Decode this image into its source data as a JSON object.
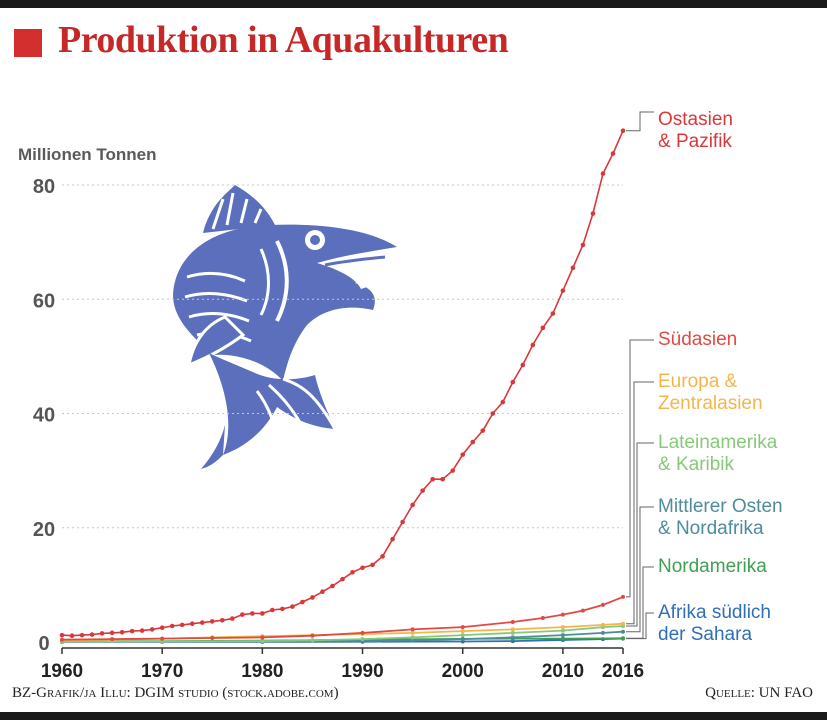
{
  "header": {
    "title": "Produktion in Aquakulturen"
  },
  "footer": {
    "credit": "BZ-Grafik/ja   Illu: DGIM studio (stock.adobe.com)",
    "source": "Quelle: UN FAO"
  },
  "colors": {
    "title": "#c62828",
    "ostasien": "#d9383a",
    "suedasien": "#e04a42",
    "europa": "#f5b54a",
    "lateinamerika": "#86c979",
    "mittlerer_osten": "#4e8c9a",
    "nordamerika": "#3ea052",
    "afrika": "#2f6fb5",
    "fish": "#5b6fbd"
  },
  "illustration": {
    "icon": "fish-icon"
  },
  "chart_data": {
    "type": "line",
    "ylabel": "Millionen Tonnen",
    "xlabel": "",
    "ylim": [
      0,
      90
    ],
    "xlim": [
      1960,
      2016
    ],
    "yticks": [
      0,
      20,
      40,
      60,
      80
    ],
    "xticks": [
      {
        "value": 1960,
        "label": "1960"
      },
      {
        "value": 1970,
        "label": "1970"
      },
      {
        "value": 1980,
        "label": "1980"
      },
      {
        "value": 1990,
        "label": "1990"
      },
      {
        "value": 2000,
        "label": "2000"
      },
      {
        "value": 2010,
        "label": "2010"
      },
      {
        "value": 2016,
        "label": "2016"
      }
    ],
    "grid": true,
    "series": [
      {
        "key": "ostasien",
        "name": "Ostasien & Pazifik",
        "label_lines": [
          "Ostasien",
          "& Pazifik"
        ],
        "x": [
          1960,
          1961,
          1962,
          1963,
          1964,
          1965,
          1966,
          1967,
          1968,
          1969,
          1970,
          1971,
          1972,
          1973,
          1974,
          1975,
          1976,
          1977,
          1978,
          1979,
          1980,
          1981,
          1982,
          1983,
          1984,
          1985,
          1986,
          1987,
          1988,
          1989,
          1990,
          1991,
          1992,
          1993,
          1994,
          1995,
          1996,
          1997,
          1998,
          1999,
          2000,
          2001,
          2002,
          2003,
          2004,
          2005,
          2006,
          2007,
          2008,
          2009,
          2010,
          2011,
          2012,
          2013,
          2014,
          2015,
          2016
        ],
        "y": [
          1.2,
          1.1,
          1.2,
          1.3,
          1.5,
          1.6,
          1.7,
          1.9,
          2.0,
          2.2,
          2.5,
          2.8,
          3.0,
          3.2,
          3.4,
          3.6,
          3.8,
          4.1,
          4.8,
          5.0,
          5.0,
          5.6,
          5.8,
          6.2,
          7.0,
          7.8,
          8.8,
          9.8,
          11.0,
          12.2,
          13.0,
          13.5,
          15.0,
          18.0,
          21.0,
          24.0,
          26.5,
          28.5,
          28.5,
          30.0,
          32.8,
          35.0,
          37.0,
          40.0,
          42.0,
          45.5,
          48.5,
          52.0,
          55.0,
          57.5,
          61.5,
          65.5,
          69.5,
          75.0,
          82.0,
          85.5,
          89.5
        ]
      },
      {
        "key": "suedasien",
        "name": "Südasien",
        "label_lines": [
          "Südasien"
        ],
        "x": [
          1960,
          1965,
          1970,
          1975,
          1980,
          1985,
          1990,
          1995,
          2000,
          2005,
          2008,
          2010,
          2012,
          2014,
          2016
        ],
        "y": [
          0.4,
          0.5,
          0.6,
          0.7,
          0.8,
          1.1,
          1.6,
          2.2,
          2.6,
          3.5,
          4.2,
          4.8,
          5.5,
          6.5,
          7.9
        ]
      },
      {
        "key": "europa",
        "name": "Europa & Zentralasien",
        "label_lines": [
          "Europa &",
          "Zentralasien"
        ],
        "x": [
          1960,
          1965,
          1970,
          1975,
          1980,
          1985,
          1990,
          1995,
          2000,
          2005,
          2010,
          2014,
          2016
        ],
        "y": [
          0.3,
          0.4,
          0.6,
          0.8,
          1.0,
          1.2,
          1.4,
          1.6,
          1.9,
          2.2,
          2.6,
          3.0,
          3.2
        ]
      },
      {
        "key": "lateinamerika",
        "name": "Lateinamerika & Karibik",
        "label_lines": [
          "Lateinamerika",
          "& Karibik"
        ],
        "x": [
          1960,
          1970,
          1980,
          1985,
          1990,
          1995,
          2000,
          2005,
          2010,
          2014,
          2016
        ],
        "y": [
          0.05,
          0.1,
          0.15,
          0.3,
          0.5,
          0.8,
          1.2,
          1.6,
          2.0,
          2.6,
          2.8
        ]
      },
      {
        "key": "mittlerer_osten",
        "name": "Mittlerer Osten & Nordafrika",
        "label_lines": [
          "Mittlerer Osten",
          "& Nordafrika"
        ],
        "x": [
          1960,
          1970,
          1980,
          1990,
          1995,
          2000,
          2005,
          2010,
          2014,
          2016
        ],
        "y": [
          0.05,
          0.08,
          0.12,
          0.2,
          0.3,
          0.5,
          0.8,
          1.2,
          1.6,
          1.8
        ]
      },
      {
        "key": "nordamerika",
        "name": "Nordamerika",
        "label_lines": [
          "Nordamerika"
        ],
        "x": [
          1960,
          1970,
          1980,
          1990,
          2000,
          2005,
          2010,
          2016
        ],
        "y": [
          0.1,
          0.15,
          0.25,
          0.4,
          0.55,
          0.6,
          0.6,
          0.65
        ]
      },
      {
        "key": "afrika",
        "name": "Afrika südlich der Sahara",
        "label_lines": [
          "Afrika südlich",
          "der Sahara"
        ],
        "x": [
          1960,
          1970,
          1980,
          1990,
          2000,
          2005,
          2010,
          2014,
          2016
        ],
        "y": [
          0.01,
          0.02,
          0.03,
          0.05,
          0.08,
          0.15,
          0.35,
          0.5,
          0.6
        ]
      }
    ]
  }
}
